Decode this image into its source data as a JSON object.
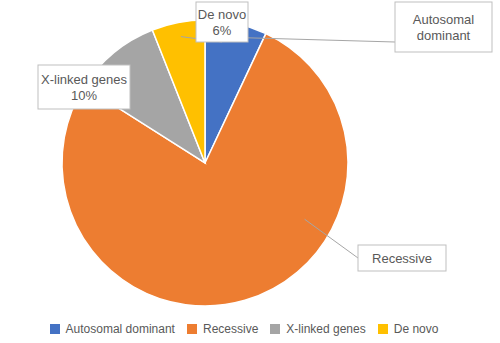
{
  "chart_data": {
    "type": "pie",
    "categories": [
      "Autosomal dominant",
      "Recessive",
      "X-linked genes",
      "De novo"
    ],
    "values": [
      7,
      77,
      10,
      6
    ],
    "value_labels": [
      null,
      null,
      "10%",
      "6%"
    ],
    "colors": [
      "#4472c4",
      "#ed7d31",
      "#a5a5a5",
      "#ffc000"
    ],
    "legend": "bottom"
  }
}
